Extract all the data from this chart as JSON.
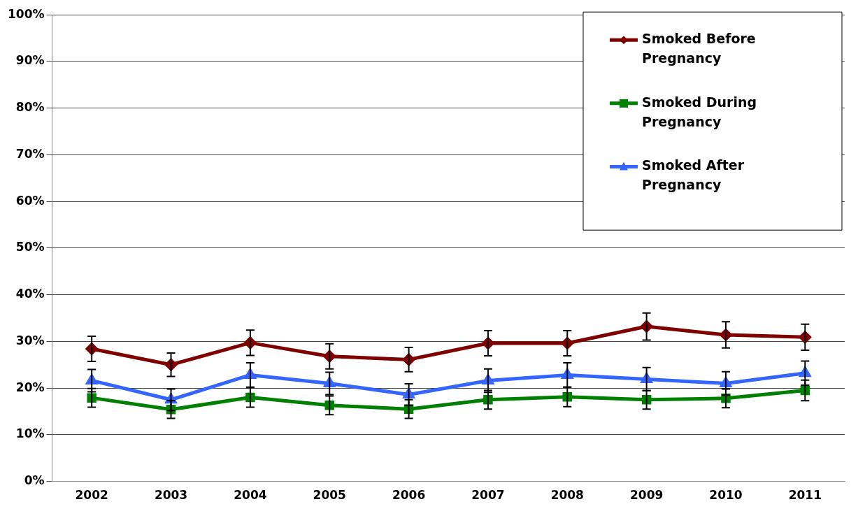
{
  "chart_data": {
    "type": "line",
    "categories": [
      "2002",
      "2003",
      "2004",
      "2005",
      "2006",
      "2007",
      "2008",
      "2009",
      "2010",
      "2011"
    ],
    "series": [
      {
        "name": "Smoked Before Pregnancy",
        "color": "#800000",
        "marker": "diamond",
        "values": [
          28.4,
          25.0,
          29.7,
          26.8,
          26.1,
          29.6,
          29.6,
          33.2,
          31.4,
          30.9
        ],
        "errors": [
          2.7,
          2.5,
          2.7,
          2.7,
          2.6,
          2.7,
          2.7,
          2.9,
          2.8,
          2.8
        ]
      },
      {
        "name": "Smoked During Pregnancy",
        "color": "#008000",
        "marker": "square",
        "values": [
          17.9,
          15.4,
          18.0,
          16.3,
          15.5,
          17.5,
          18.1,
          17.5,
          17.8,
          19.5
        ],
        "errors": [
          2.0,
          1.9,
          2.1,
          2.0,
          2.0,
          2.0,
          2.1,
          2.0,
          2.0,
          2.2
        ]
      },
      {
        "name": "Smoked After Pregnancy",
        "color": "#3366ff",
        "marker": "triangle",
        "values": [
          21.6,
          17.5,
          22.8,
          21.0,
          18.6,
          21.6,
          22.8,
          21.9,
          21.0,
          23.2
        ],
        "errors": [
          2.4,
          2.3,
          2.6,
          2.4,
          2.3,
          2.5,
          2.6,
          2.5,
          2.5,
          2.6
        ]
      }
    ],
    "ylim": [
      0,
      100
    ],
    "yticks": [
      {
        "value": 0,
        "label": "0%"
      },
      {
        "value": 10,
        "label": "10%"
      },
      {
        "value": 20,
        "label": "20%"
      },
      {
        "value": 30,
        "label": "30%"
      },
      {
        "value": 40,
        "label": "40%"
      },
      {
        "value": 50,
        "label": "50%"
      },
      {
        "value": 60,
        "label": "60%"
      },
      {
        "value": 70,
        "label": "70%"
      },
      {
        "value": 80,
        "label": "80%"
      },
      {
        "value": 90,
        "label": "90%"
      },
      {
        "value": 100,
        "label": "100%"
      }
    ],
    "grid": "y",
    "legend": "top right"
  }
}
